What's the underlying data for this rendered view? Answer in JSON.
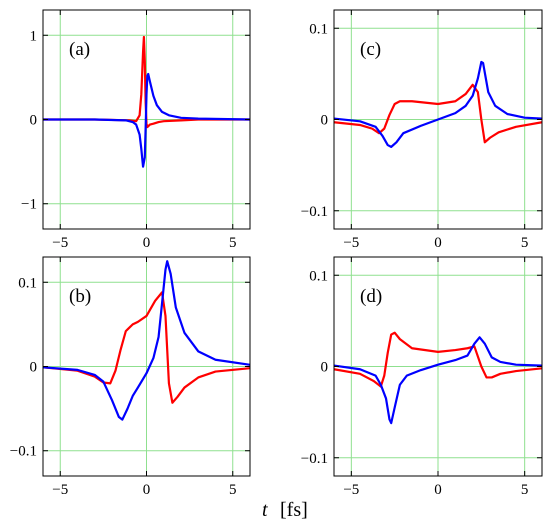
{
  "figure": {
    "xlabel_var": "t",
    "xlabel_unit": "[fs]"
  },
  "chart_data": [
    {
      "type": "line",
      "panel_label": "(a)",
      "xlim": [
        -6,
        6
      ],
      "ylim": [
        -1.3,
        1.3
      ],
      "grid": true,
      "xticks": [
        -5,
        0,
        5
      ],
      "xtick_labels": [
        "−5",
        "0",
        "5"
      ],
      "yticks": [
        -1,
        0,
        1
      ],
      "ytick_labels": [
        "−1",
        "0",
        "1"
      ],
      "series": [
        {
          "color": "#ff0000",
          "x": [
            -6,
            -3,
            -1,
            -0.6,
            -0.4,
            -0.3,
            -0.2,
            -0.15,
            -0.1,
            -0.05,
            0,
            0.05,
            0.1,
            0.2,
            0.4,
            0.7,
            1,
            2,
            3,
            6
          ],
          "y": [
            0,
            0,
            -0.01,
            -0.02,
            0.05,
            0.3,
            0.8,
            0.98,
            0.7,
            0.2,
            -0.05,
            -0.09,
            -0.08,
            -0.06,
            -0.05,
            -0.03,
            -0.02,
            -0.01,
            0,
            0
          ]
        },
        {
          "color": "#0000ff",
          "x": [
            -6,
            -3,
            -1.2,
            -0.8,
            -0.6,
            -0.4,
            -0.3,
            -0.2,
            -0.1,
            -0.05,
            0,
            0.05,
            0.1,
            0.2,
            0.4,
            0.6,
            0.9,
            1.3,
            2,
            3,
            6
          ],
          "y": [
            0,
            0,
            -0.01,
            -0.03,
            -0.06,
            -0.18,
            -0.35,
            -0.56,
            -0.45,
            -0.1,
            0.3,
            0.52,
            0.54,
            0.45,
            0.28,
            0.17,
            0.09,
            0.05,
            0.02,
            0.01,
            0
          ]
        }
      ]
    },
    {
      "type": "line",
      "panel_label": "(b)",
      "xlim": [
        -6,
        6
      ],
      "ylim": [
        -0.13,
        0.13
      ],
      "grid": true,
      "xticks": [
        -5,
        0,
        5
      ],
      "xtick_labels": [
        "−5",
        "0",
        "5"
      ],
      "yticks": [
        -0.1,
        0,
        0.1
      ],
      "ytick_labels": [
        "−0.1",
        "0",
        "0.1"
      ],
      "series": [
        {
          "color": "#ff0000",
          "x": [
            -6,
            -4,
            -3,
            -2.5,
            -2.1,
            -1.8,
            -1.5,
            -1.2,
            -0.8,
            -0.5,
            0,
            0.5,
            0.9,
            1.1,
            1.3,
            1.5,
            1.8,
            2.2,
            3,
            4,
            6
          ],
          "y": [
            -0.001,
            -0.005,
            -0.012,
            -0.019,
            -0.02,
            -0.005,
            0.02,
            0.042,
            0.05,
            0.053,
            0.06,
            0.078,
            0.088,
            0.06,
            -0.02,
            -0.043,
            -0.036,
            -0.025,
            -0.013,
            -0.006,
            -0.002
          ]
        },
        {
          "color": "#0000ff",
          "x": [
            -6,
            -4,
            -3,
            -2.5,
            -2,
            -1.6,
            -1.4,
            -1.1,
            -0.8,
            -0.5,
            0,
            0.4,
            0.7,
            0.9,
            1.1,
            1.2,
            1.4,
            1.7,
            2.2,
            3,
            4,
            6
          ],
          "y": [
            -0.001,
            -0.004,
            -0.01,
            -0.018,
            -0.04,
            -0.06,
            -0.063,
            -0.05,
            -0.035,
            -0.025,
            -0.008,
            0.01,
            0.035,
            0.075,
            0.115,
            0.125,
            0.11,
            0.07,
            0.04,
            0.018,
            0.008,
            0.002
          ]
        }
      ]
    },
    {
      "type": "line",
      "panel_label": "(c)",
      "xlim": [
        -6,
        6
      ],
      "ylim": [
        -0.12,
        0.12
      ],
      "grid": true,
      "xticks": [
        -5,
        0,
        5
      ],
      "xtick_labels": [
        "−5",
        "0",
        "5"
      ],
      "yticks": [
        -0.1,
        0,
        0.1
      ],
      "ytick_labels": [
        "−0.1",
        "0",
        "0.1"
      ],
      "series": [
        {
          "color": "#ff0000",
          "x": [
            -6,
            -4.5,
            -3.8,
            -3.4,
            -3.1,
            -2.8,
            -2.5,
            -2.2,
            -1.5,
            0,
            1,
            1.6,
            2,
            2.3,
            2.5,
            2.7,
            3,
            3.5,
            4.5,
            6
          ],
          "y": [
            -0.003,
            -0.006,
            -0.01,
            -0.015,
            -0.01,
            0.005,
            0.017,
            0.02,
            0.02,
            0.017,
            0.02,
            0.028,
            0.038,
            0.03,
            0.0,
            -0.025,
            -0.02,
            -0.014,
            -0.008,
            -0.003
          ]
        },
        {
          "color": "#0000ff",
          "x": [
            -6,
            -4.5,
            -3.6,
            -3.2,
            -2.9,
            -2.7,
            -2.4,
            -2,
            -1,
            0,
            1,
            1.6,
            2,
            2.3,
            2.5,
            2.6,
            2.9,
            3.3,
            4,
            5,
            6
          ],
          "y": [
            0.001,
            -0.002,
            -0.008,
            -0.018,
            -0.028,
            -0.03,
            -0.025,
            -0.015,
            -0.007,
            0.0,
            0.007,
            0.015,
            0.026,
            0.045,
            0.063,
            0.062,
            0.03,
            0.015,
            0.006,
            0.002,
            0.001
          ]
        }
      ]
    },
    {
      "type": "line",
      "panel_label": "(d)",
      "xlim": [
        -6,
        6
      ],
      "ylim": [
        -0.12,
        0.12
      ],
      "grid": true,
      "xticks": [
        -5,
        0,
        5
      ],
      "xtick_labels": [
        "−5",
        "0",
        "5"
      ],
      "yticks": [
        -0.1,
        0,
        0.1
      ],
      "ytick_labels": [
        "−0.1",
        "0",
        "0.1"
      ],
      "series": [
        {
          "color": "#ff0000",
          "x": [
            -6,
            -4.5,
            -3.7,
            -3.3,
            -3.1,
            -2.9,
            -2.7,
            -2.5,
            -2.2,
            -1.5,
            0,
            1,
            1.7,
            2.1,
            2.5,
            2.8,
            3.1,
            3.6,
            4.5,
            6
          ],
          "y": [
            -0.003,
            -0.008,
            -0.016,
            -0.022,
            -0.01,
            0.015,
            0.035,
            0.037,
            0.03,
            0.02,
            0.016,
            0.018,
            0.02,
            0.022,
            0.0,
            -0.012,
            -0.012,
            -0.008,
            -0.005,
            -0.002
          ]
        },
        {
          "color": "#0000ff",
          "x": [
            -6,
            -4.5,
            -3.6,
            -3.3,
            -3,
            -2.8,
            -2.7,
            -2.5,
            -2.2,
            -1.8,
            -1,
            0,
            1,
            1.7,
            2.1,
            2.4,
            2.7,
            3.1,
            3.6,
            4.5,
            6
          ],
          "y": [
            0.001,
            -0.003,
            -0.01,
            -0.02,
            -0.035,
            -0.058,
            -0.062,
            -0.045,
            -0.02,
            -0.01,
            -0.004,
            0.002,
            0.007,
            0.012,
            0.025,
            0.032,
            0.025,
            0.01,
            0.005,
            0.002,
            0.001
          ]
        }
      ]
    }
  ]
}
